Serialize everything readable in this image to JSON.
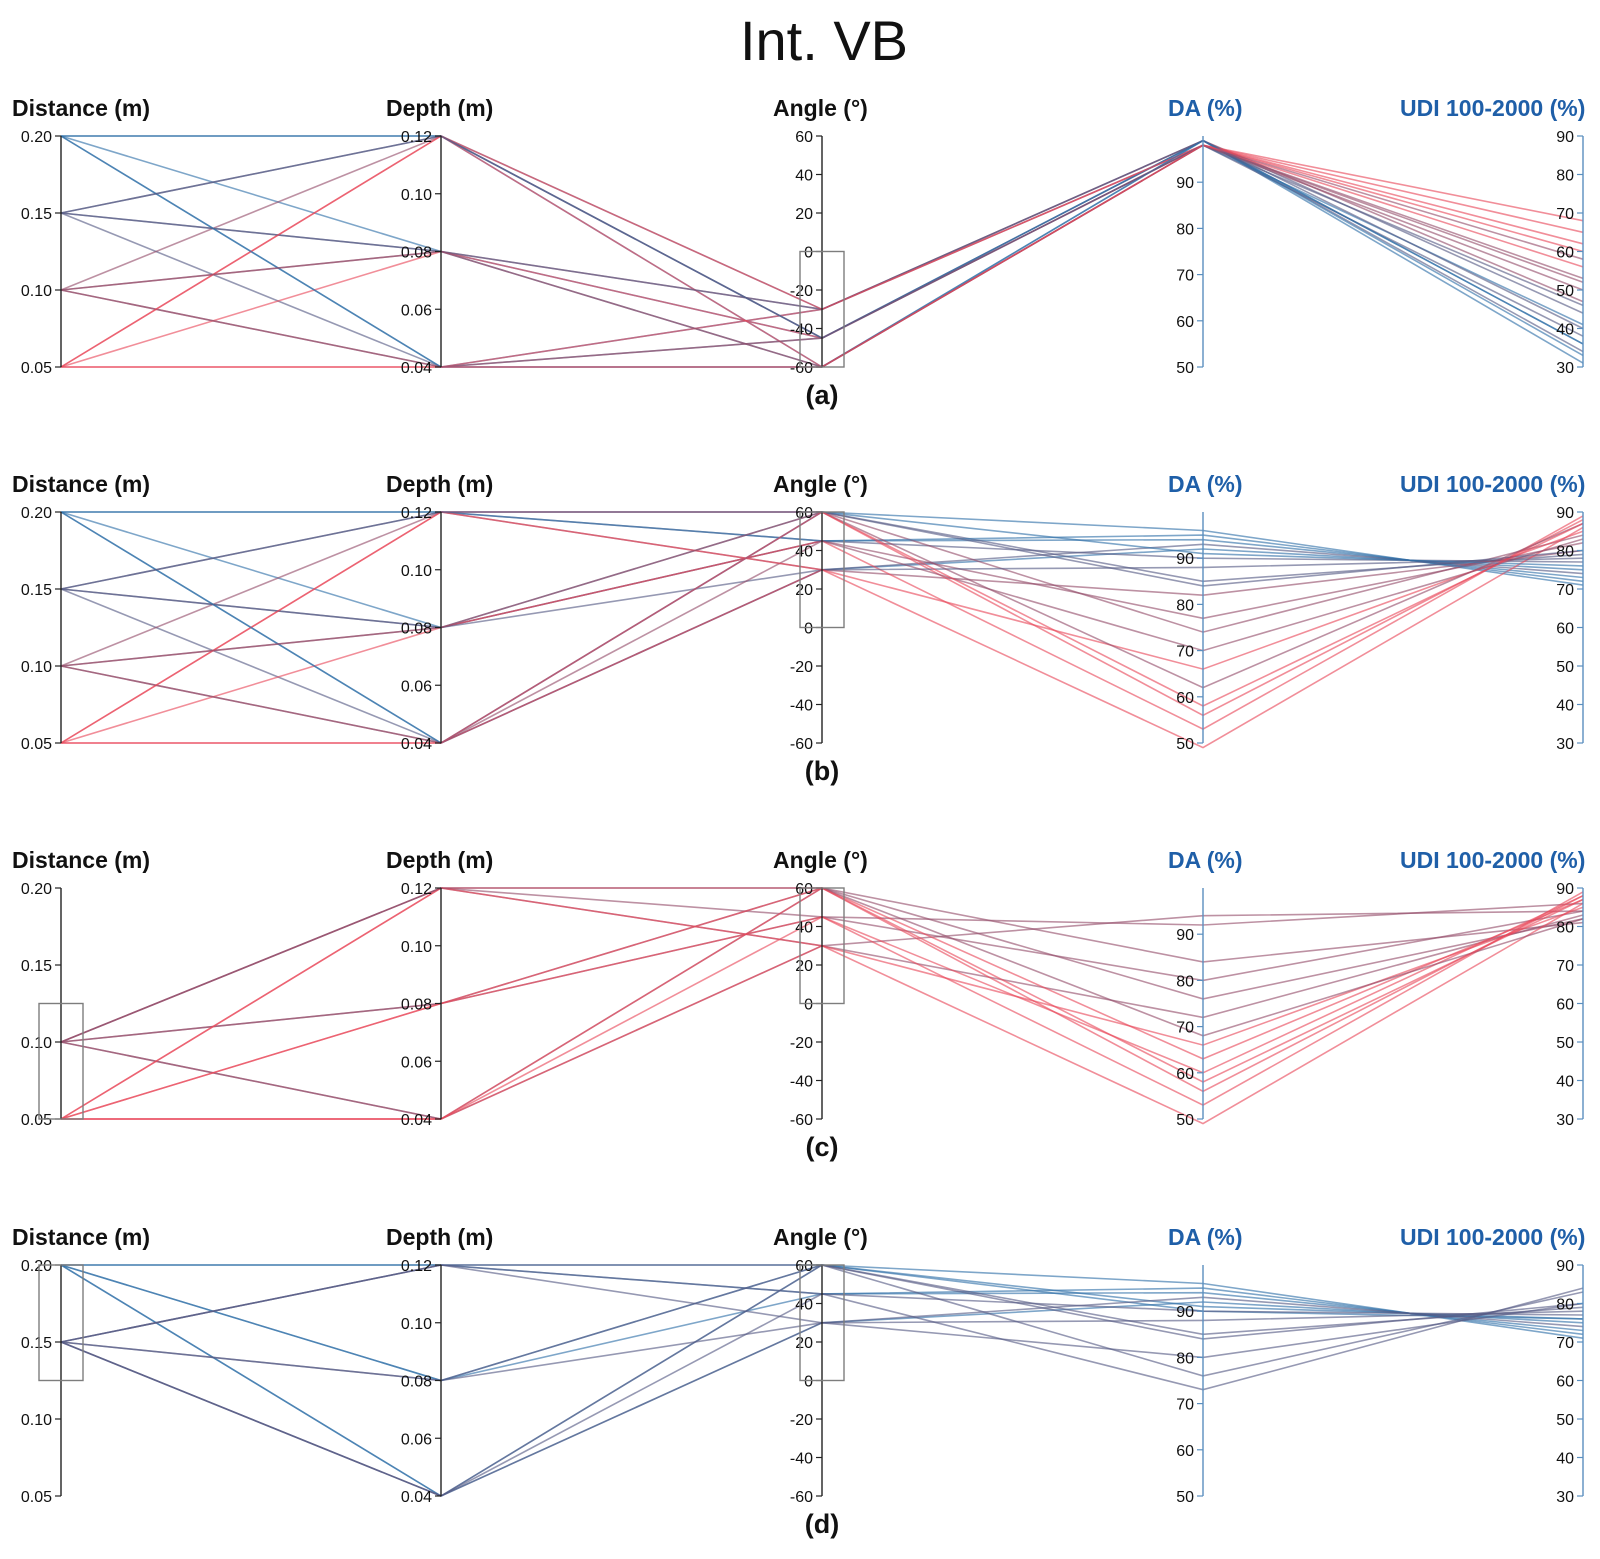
{
  "title": "Int. VB",
  "colors": {
    "accent_blue": "#1f5fa8",
    "line_low": "#e8485a",
    "line_high": "#2f6fa8",
    "line_mid": "#6a4f73",
    "brush_box": "#7d7d7d",
    "axis": "#222222"
  },
  "chart_data": [
    {
      "type": "parallel_coordinates",
      "panel_label": "(a)",
      "axes": [
        {
          "label": "Distance (m)",
          "range": [
            0.05,
            0.2
          ],
          "ticks": [
            "0.20",
            "0.15",
            "0.10",
            "0.05"
          ],
          "tick_values": [
            0.2,
            0.15,
            0.1,
            0.05
          ]
        },
        {
          "label": "Depth (m)",
          "range": [
            0.04,
            0.12
          ],
          "ticks": [
            "0.12",
            "0.10",
            "0.08",
            "0.06",
            "0.04"
          ],
          "tick_values": [
            0.12,
            0.1,
            0.08,
            0.06,
            0.04
          ]
        },
        {
          "label": "Angle (°)",
          "range": [
            -60,
            60
          ],
          "ticks": [
            "60",
            "40",
            "20",
            "0",
            "-20",
            "-40",
            "-60"
          ],
          "tick_values": [
            60,
            40,
            20,
            0,
            -20,
            -40,
            -60
          ]
        },
        {
          "label": "DA (%)",
          "range": [
            50,
            100
          ],
          "ticks": [
            "90",
            "80",
            "70",
            "60",
            "50"
          ],
          "tick_values": [
            90,
            80,
            70,
            60,
            50
          ],
          "highlight": true
        },
        {
          "label": "UDI 100-2000 (%)",
          "range": [
            30,
            90
          ],
          "ticks": [
            "90",
            "80",
            "70",
            "60",
            "50",
            "40",
            "30"
          ],
          "tick_values": [
            90,
            80,
            70,
            60,
            50,
            40,
            30
          ],
          "highlight": true
        }
      ],
      "brush": {
        "axis": "Angle (°)",
        "range": [
          -60,
          0
        ]
      },
      "records": [
        [
          0.2,
          0.12,
          -60,
          99,
          31
        ],
        [
          0.2,
          0.08,
          -45,
          99,
          36
        ],
        [
          0.2,
          0.04,
          -30,
          98,
          41
        ],
        [
          0.15,
          0.12,
          -30,
          99,
          34
        ],
        [
          0.15,
          0.08,
          -60,
          98,
          38
        ],
        [
          0.15,
          0.04,
          -45,
          99,
          44
        ],
        [
          0.1,
          0.12,
          -45,
          98,
          50
        ],
        [
          0.1,
          0.08,
          -30,
          99,
          47
        ],
        [
          0.1,
          0.04,
          -60,
          98,
          53
        ],
        [
          0.05,
          0.12,
          -60,
          98,
          68
        ],
        [
          0.05,
          0.08,
          -45,
          98,
          62
        ],
        [
          0.05,
          0.04,
          -30,
          98,
          56
        ],
        [
          0.2,
          0.12,
          -45,
          99,
          33
        ],
        [
          0.15,
          0.08,
          -30,
          99,
          40
        ],
        [
          0.1,
          0.04,
          -45,
          98,
          58
        ],
        [
          0.05,
          0.12,
          -30,
          98,
          65
        ],
        [
          0.2,
          0.04,
          -60,
          99,
          36
        ],
        [
          0.15,
          0.12,
          -45,
          98,
          46
        ],
        [
          0.1,
          0.08,
          -60,
          98,
          52
        ],
        [
          0.05,
          0.04,
          -60,
          98,
          60
        ]
      ]
    },
    {
      "type": "parallel_coordinates",
      "panel_label": "(b)",
      "axes": [
        {
          "label": "Distance (m)",
          "range": [
            0.05,
            0.2
          ],
          "ticks": [
            "0.20",
            "0.15",
            "0.10",
            "0.05"
          ],
          "tick_values": [
            0.2,
            0.15,
            0.1,
            0.05
          ]
        },
        {
          "label": "Depth (m)",
          "range": [
            0.04,
            0.12
          ],
          "ticks": [
            "0.12",
            "0.10",
            "0.08",
            "0.06",
            "0.04"
          ],
          "tick_values": [
            0.12,
            0.1,
            0.08,
            0.06,
            0.04
          ]
        },
        {
          "label": "Angle (°)",
          "range": [
            -60,
            60
          ],
          "ticks": [
            "60",
            "40",
            "20",
            "0",
            "-20",
            "-40",
            "-60"
          ],
          "tick_values": [
            60,
            40,
            20,
            0,
            -20,
            -40,
            -60
          ]
        },
        {
          "label": "DA (%)",
          "range": [
            50,
            100
          ],
          "ticks": [
            "90",
            "80",
            "70",
            "60",
            "50"
          ],
          "tick_values": [
            90,
            80,
            70,
            60,
            50
          ],
          "highlight": true
        },
        {
          "label": "UDI 100-2000 (%)",
          "range": [
            30,
            90
          ],
          "ticks": [
            "90",
            "80",
            "70",
            "60",
            "50",
            "40",
            "30"
          ],
          "tick_values": [
            90,
            80,
            70,
            60,
            50,
            40,
            30
          ],
          "highlight": true
        }
      ],
      "brush": {
        "axis": "Angle (°)",
        "range": [
          0,
          60
        ]
      },
      "records": [
        [
          0.2,
          0.12,
          60,
          96,
          71
        ],
        [
          0.2,
          0.08,
          45,
          94,
          73
        ],
        [
          0.2,
          0.04,
          30,
          92,
          75
        ],
        [
          0.15,
          0.12,
          45,
          90,
          77
        ],
        [
          0.15,
          0.08,
          60,
          85,
          79
        ],
        [
          0.15,
          0.04,
          30,
          93,
          74
        ],
        [
          0.1,
          0.12,
          30,
          82,
          80
        ],
        [
          0.1,
          0.08,
          45,
          77,
          82
        ],
        [
          0.1,
          0.04,
          60,
          74,
          84
        ],
        [
          0.05,
          0.12,
          60,
          56,
          88
        ],
        [
          0.05,
          0.08,
          45,
          53,
          89
        ],
        [
          0.05,
          0.04,
          30,
          49,
          86
        ],
        [
          0.2,
          0.12,
          45,
          95,
          72
        ],
        [
          0.15,
          0.08,
          30,
          88,
          78
        ],
        [
          0.1,
          0.04,
          45,
          70,
          83
        ],
        [
          0.05,
          0.12,
          30,
          66,
          85
        ],
        [
          0.2,
          0.04,
          60,
          91,
          76
        ],
        [
          0.15,
          0.12,
          60,
          84,
          80
        ],
        [
          0.1,
          0.08,
          60,
          62,
          87
        ],
        [
          0.05,
          0.04,
          60,
          58,
          87
        ]
      ]
    },
    {
      "type": "parallel_coordinates",
      "panel_label": "(c)",
      "axes": [
        {
          "label": "Distance (m)",
          "range": [
            0.05,
            0.2
          ],
          "ticks": [
            "0.20",
            "0.15",
            "0.10",
            "0.05"
          ],
          "tick_values": [
            0.2,
            0.15,
            0.1,
            0.05
          ]
        },
        {
          "label": "Depth (m)",
          "range": [
            0.04,
            0.12
          ],
          "ticks": [
            "0.12",
            "0.10",
            "0.08",
            "0.06",
            "0.04"
          ],
          "tick_values": [
            0.12,
            0.1,
            0.08,
            0.06,
            0.04
          ]
        },
        {
          "label": "Angle (°)",
          "range": [
            -60,
            60
          ],
          "ticks": [
            "60",
            "40",
            "20",
            "0",
            "-20",
            "-40",
            "-60"
          ],
          "tick_values": [
            60,
            40,
            20,
            0,
            -20,
            -40,
            -60
          ]
        },
        {
          "label": "DA (%)",
          "range": [
            50,
            100
          ],
          "ticks": [
            "90",
            "80",
            "70",
            "60",
            "50"
          ],
          "tick_values": [
            90,
            80,
            70,
            60,
            50
          ],
          "highlight": true
        },
        {
          "label": "UDI 100-2000 (%)",
          "range": [
            30,
            90
          ],
          "ticks": [
            "90",
            "80",
            "70",
            "60",
            "50",
            "40",
            "30"
          ],
          "tick_values": [
            90,
            80,
            70,
            60,
            50,
            40,
            30
          ],
          "highlight": true
        }
      ],
      "brush": {
        "axis": "Distance (m)",
        "range": [
          0.05,
          0.125
        ]
      },
      "brush2": {
        "axis": "Angle (°)",
        "range": [
          0,
          60
        ]
      },
      "records": [
        [
          0.1,
          0.12,
          30,
          94,
          84
        ],
        [
          0.1,
          0.08,
          45,
          92,
          86
        ],
        [
          0.1,
          0.04,
          60,
          84,
          81
        ],
        [
          0.1,
          0.12,
          45,
          80,
          84
        ],
        [
          0.1,
          0.08,
          60,
          76,
          82
        ],
        [
          0.1,
          0.04,
          30,
          72,
          83
        ],
        [
          0.05,
          0.12,
          60,
          56,
          88
        ],
        [
          0.05,
          0.08,
          45,
          53,
          89
        ],
        [
          0.05,
          0.04,
          30,
          49,
          86
        ],
        [
          0.05,
          0.12,
          30,
          66,
          85
        ],
        [
          0.05,
          0.08,
          60,
          63,
          87
        ],
        [
          0.05,
          0.04,
          45,
          60,
          88
        ],
        [
          0.1,
          0.12,
          60,
          68,
          82
        ],
        [
          0.05,
          0.04,
          60,
          58,
          87
        ]
      ]
    },
    {
      "type": "parallel_coordinates",
      "panel_label": "(d)",
      "axes": [
        {
          "label": "Distance (m)",
          "range": [
            0.05,
            0.2
          ],
          "ticks": [
            "0.20",
            "0.15",
            "0.10",
            "0.05"
          ],
          "tick_values": [
            0.2,
            0.15,
            0.1,
            0.05
          ]
        },
        {
          "label": "Depth (m)",
          "range": [
            0.04,
            0.12
          ],
          "ticks": [
            "0.12",
            "0.10",
            "0.08",
            "0.06",
            "0.04"
          ],
          "tick_values": [
            0.12,
            0.1,
            0.08,
            0.06,
            0.04
          ]
        },
        {
          "label": "Angle (°)",
          "range": [
            -60,
            60
          ],
          "ticks": [
            "60",
            "40",
            "20",
            "0",
            "-20",
            "-40",
            "-60"
          ],
          "tick_values": [
            60,
            40,
            20,
            0,
            -20,
            -40,
            -60
          ]
        },
        {
          "label": "DA (%)",
          "range": [
            50,
            100
          ],
          "ticks": [
            "90",
            "80",
            "70",
            "60",
            "50"
          ],
          "tick_values": [
            90,
            80,
            70,
            60,
            50
          ],
          "highlight": true
        },
        {
          "label": "UDI 100-2000 (%)",
          "range": [
            30,
            90
          ],
          "ticks": [
            "90",
            "80",
            "70",
            "60",
            "50",
            "40",
            "30"
          ],
          "tick_values": [
            90,
            80,
            70,
            60,
            50,
            40,
            30
          ],
          "highlight": true
        }
      ],
      "brush": {
        "axis": "Distance (m)",
        "range": [
          0.125,
          0.2
        ]
      },
      "brush2": {
        "axis": "Angle (°)",
        "range": [
          0,
          60
        ]
      },
      "records": [
        [
          0.2,
          0.12,
          60,
          96,
          71
        ],
        [
          0.2,
          0.08,
          45,
          94,
          73
        ],
        [
          0.2,
          0.04,
          30,
          92,
          75
        ],
        [
          0.2,
          0.12,
          45,
          95,
          72
        ],
        [
          0.2,
          0.08,
          60,
          90,
          76
        ],
        [
          0.2,
          0.04,
          60,
          91,
          76
        ],
        [
          0.15,
          0.12,
          45,
          90,
          77
        ],
        [
          0.15,
          0.08,
          60,
          85,
          79
        ],
        [
          0.15,
          0.04,
          30,
          93,
          74
        ],
        [
          0.15,
          0.12,
          30,
          80,
          80
        ],
        [
          0.15,
          0.08,
          30,
          88,
          78
        ],
        [
          0.15,
          0.04,
          60,
          76,
          83
        ],
        [
          0.15,
          0.12,
          60,
          84,
          80
        ],
        [
          0.15,
          0.04,
          45,
          73,
          84
        ]
      ]
    }
  ]
}
